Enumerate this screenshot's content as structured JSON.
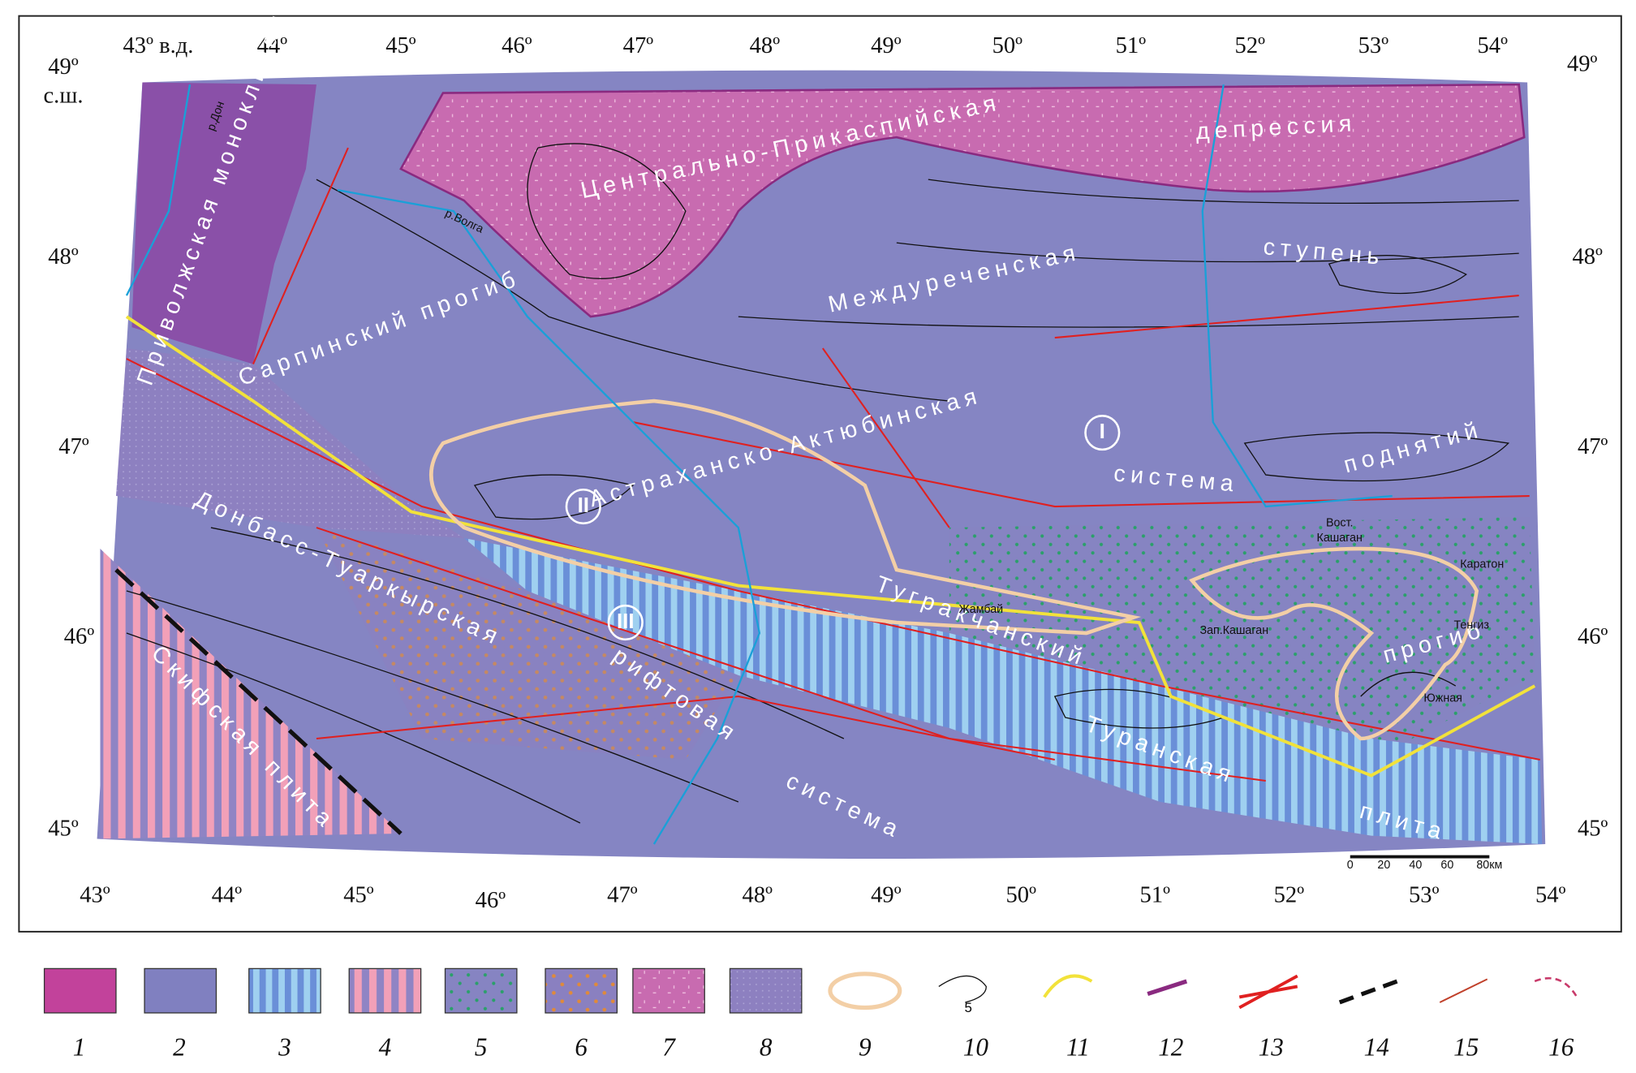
{
  "top_labels": [
    "43º в.д.",
    "44º",
    "45º",
    "46º",
    "47º",
    "48º",
    "49º",
    "50º",
    "51º",
    "52º",
    "53º",
    "54º"
  ],
  "bottom_labels": [
    "43º",
    "44º",
    "45º",
    "46º",
    "47º",
    "48º",
    "49º",
    "50º",
    "51º",
    "52º",
    "53º",
    "54º"
  ],
  "left_labels": [
    "49º",
    "с.ш.",
    "48º",
    "47º",
    "46º",
    "45º"
  ],
  "right_labels": [
    "49º",
    "48º",
    "47º",
    "46º",
    "45º"
  ],
  "regions": [
    "Центрально-Прикаспийская",
    "депрессия",
    "Междуреченская",
    "ступень",
    "Приволжская моноклиналь",
    "Сарпинский прогиб",
    "Астраханско-Актюбинская",
    "система",
    "поднятий",
    "Донбасс-Туаркырская",
    "рифтовая",
    "система",
    "Скифская плита",
    "Тугракчанский",
    "прогиб",
    "Туранская",
    "плита"
  ],
  "rivers": [
    "р.Дон",
    "р.Волга"
  ],
  "roman": [
    "I",
    "II",
    "III"
  ],
  "places": [
    "Жамбай",
    "Вост.",
    "Кашаган",
    "Каратон",
    "Зап.Кашаган",
    "Тенгиз",
    "Южная"
  ],
  "scale": [
    "0",
    "20",
    "40",
    "60",
    "80км"
  ],
  "legend": [
    "1",
    "2",
    "3",
    "4",
    "5",
    "6",
    "7",
    "8",
    "9",
    "10",
    "11",
    "12",
    "13",
    "14",
    "15",
    "16"
  ],
  "legend_contour_label": "5"
}
